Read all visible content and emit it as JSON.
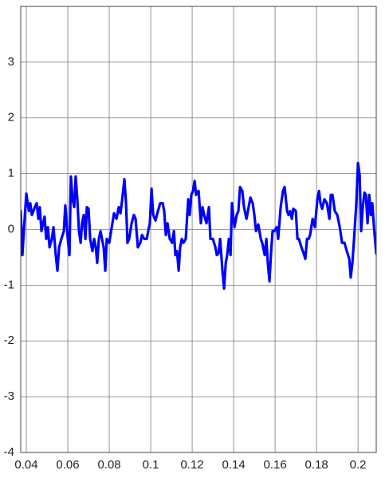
{
  "chart_data": {
    "type": "line",
    "x": [
      0.0373,
      0.0381,
      0.0388,
      0.04,
      0.0412,
      0.0419,
      0.0427,
      0.0438,
      0.045,
      0.0458,
      0.0465,
      0.0473,
      0.0481,
      0.0488,
      0.0496,
      0.0504,
      0.0512,
      0.0523,
      0.0531,
      0.0542,
      0.055,
      0.0558,
      0.0569,
      0.0581,
      0.0588,
      0.06,
      0.0608,
      0.0615,
      0.0623,
      0.0631,
      0.0638,
      0.0646,
      0.0654,
      0.0662,
      0.0669,
      0.0677,
      0.0685,
      0.0692,
      0.07,
      0.0708,
      0.0719,
      0.0727,
      0.0735,
      0.0742,
      0.075,
      0.0758,
      0.0765,
      0.0773,
      0.0781,
      0.0788,
      0.08,
      0.0812,
      0.0823,
      0.0835,
      0.0846,
      0.0854,
      0.0862,
      0.0873,
      0.0881,
      0.0888,
      0.0896,
      0.0908,
      0.0919,
      0.0927,
      0.0938,
      0.095,
      0.0958,
      0.0969,
      0.0981,
      0.0988,
      0.0996,
      0.1004,
      0.1012,
      0.1023,
      0.1035,
      0.1046,
      0.1058,
      0.1065,
      0.1073,
      0.1081,
      0.1092,
      0.1104,
      0.1112,
      0.1119,
      0.1127,
      0.1135,
      0.1142,
      0.115,
      0.1158,
      0.1169,
      0.1181,
      0.1188,
      0.1196,
      0.1204,
      0.1212,
      0.1219,
      0.1231,
      0.1242,
      0.125,
      0.1258,
      0.1269,
      0.1281,
      0.1288,
      0.13,
      0.1312,
      0.1319,
      0.1327,
      0.1335,
      0.1346,
      0.1354,
      0.1362,
      0.1369,
      0.1377,
      0.1385,
      0.1392,
      0.1404,
      0.1415,
      0.1423,
      0.1431,
      0.1442,
      0.145,
      0.1462,
      0.1469,
      0.1481,
      0.1492,
      0.15,
      0.1508,
      0.1519,
      0.1531,
      0.1538,
      0.155,
      0.1558,
      0.1565,
      0.1573,
      0.1581,
      0.1588,
      0.1596,
      0.1608,
      0.1615,
      0.1627,
      0.1638,
      0.1646,
      0.1658,
      0.1665,
      0.1673,
      0.1681,
      0.1688,
      0.17,
      0.1708,
      0.1715,
      0.1727,
      0.1738,
      0.1746,
      0.1754,
      0.1762,
      0.1769,
      0.1781,
      0.1792,
      0.1804,
      0.1812,
      0.1819,
      0.1827,
      0.1838,
      0.185,
      0.1862,
      0.1869,
      0.1877,
      0.1888,
      0.19,
      0.1912,
      0.1923,
      0.1935,
      0.1946,
      0.1958,
      0.1965,
      0.1973,
      0.1981,
      0.1992,
      0.2,
      0.2008,
      0.2015,
      0.2023,
      0.2031,
      0.2038,
      0.2046,
      0.2054,
      0.2062,
      0.2069,
      0.2077,
      0.2088
    ],
    "series": [
      {
        "color": "#0000ff",
        "values": [
          0.33,
          -0.46,
          -0.03,
          0.64,
          0.33,
          0.47,
          0.26,
          0.37,
          0.47,
          0.19,
          0.4,
          -0.03,
          0.11,
          0.23,
          -0.17,
          0.04,
          -0.32,
          -0.17,
          0.04,
          -0.46,
          -0.74,
          -0.32,
          -0.17,
          -0.03,
          0.43,
          -0.17,
          -0.46,
          0.95,
          0.54,
          0.4,
          0.95,
          0.54,
          -0.03,
          -0.24,
          0.11,
          0.26,
          -0.17,
          0.4,
          0.37,
          -0.17,
          -0.39,
          -0.17,
          -0.32,
          -0.6,
          -0.17,
          -0.03,
          -0.17,
          -0.32,
          -0.74,
          -0.17,
          -0.24,
          0.04,
          0.29,
          0.19,
          0.4,
          0.29,
          0.52,
          0.9,
          0.47,
          -0.24,
          -0.17,
          0.11,
          0.26,
          0.19,
          -0.32,
          -0.24,
          -0.1,
          -0.17,
          -0.17,
          -0.03,
          0.11,
          0.73,
          0.26,
          0.16,
          0.33,
          0.47,
          0.47,
          0.33,
          -0.1,
          0.11,
          -0.17,
          -0.24,
          -0.03,
          -0.46,
          -0.39,
          -0.74,
          -0.32,
          -0.17,
          -0.24,
          -0.17,
          0.54,
          0.26,
          0.62,
          0.69,
          0.87,
          0.62,
          0.69,
          0.11,
          0.4,
          0.26,
          0.11,
          0.4,
          -0.17,
          -0.17,
          -0.32,
          -0.46,
          -0.43,
          -0.17,
          -0.74,
          -1.06,
          -0.6,
          -0.46,
          -0.17,
          -0.46,
          0.47,
          0.04,
          0.26,
          0.33,
          0.76,
          0.69,
          0.4,
          0.19,
          0.33,
          0.57,
          0.47,
          0.26,
          -0.03,
          0.09,
          -0.17,
          -0.24,
          -0.46,
          -0.17,
          -0.6,
          -0.93,
          -0.39,
          -0.03,
          -0.03,
          0.04,
          -0.17,
          0.4,
          0.69,
          0.76,
          0.33,
          0.26,
          0.33,
          0.19,
          0.37,
          0.33,
          -0.17,
          -0.17,
          -0.32,
          -0.43,
          -0.53,
          -0.17,
          -0.17,
          -0.1,
          0.19,
          0.04,
          0.54,
          0.69,
          0.47,
          0.37,
          0.54,
          0.47,
          0.19,
          0.62,
          0.62,
          0.33,
          0.26,
          0.04,
          -0.24,
          -0.24,
          -0.39,
          -0.53,
          -0.86,
          -0.6,
          -0.17,
          0.47,
          1.19,
          0.97,
          -0.03,
          0.4,
          0.66,
          0.62,
          0.11,
          0.62,
          0.26,
          0.47,
          0.04,
          -0.43
        ]
      }
    ],
    "xlim": [
      0.0373,
      0.2088
    ],
    "ylim": [
      -4,
      4
    ],
    "xticks": [
      0.04,
      0.06,
      0.08,
      0.1,
      0.12,
      0.14,
      0.16,
      0.18,
      0.2
    ],
    "yticks": [
      -4,
      -3,
      -2,
      -1,
      0,
      1,
      2,
      3
    ],
    "grid": true
  }
}
